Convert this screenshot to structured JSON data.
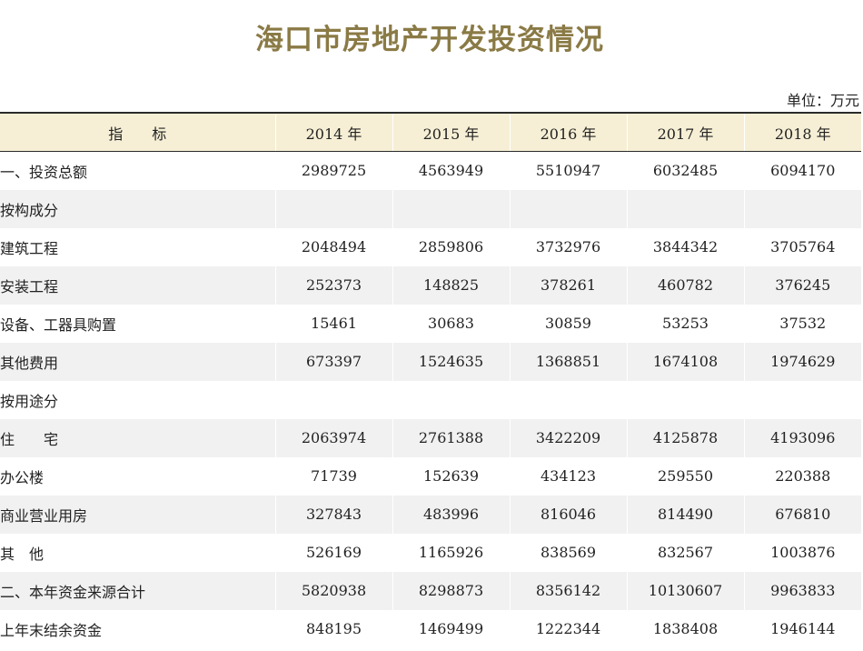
{
  "title": "海口市房地产开发投资情况",
  "unit": "单位：万元",
  "table": {
    "header": [
      "指　　标",
      "2014 年",
      "2015 年",
      "2016 年",
      "2017 年",
      "2018 年"
    ],
    "rows": [
      {
        "label": "一、投资总额",
        "values": [
          "2989725",
          "4563949",
          "5510947",
          "6032485",
          "6094170"
        ]
      },
      {
        "label": "按构成分",
        "values": [
          "",
          "",
          "",
          "",
          ""
        ]
      },
      {
        "label": "建筑工程",
        "values": [
          "2048494",
          "2859806",
          "3732976",
          "3844342",
          "3705764"
        ]
      },
      {
        "label": "安装工程",
        "values": [
          "252373",
          "148825",
          "378261",
          "460782",
          "376245"
        ]
      },
      {
        "label": "设备、工器具购置",
        "values": [
          "15461",
          "30683",
          "30859",
          "53253",
          "37532"
        ]
      },
      {
        "label": "其他费用",
        "values": [
          "673397",
          "1524635",
          "1368851",
          "1674108",
          "1974629"
        ]
      },
      {
        "label": "按用途分",
        "values": [
          "",
          "",
          "",
          "",
          ""
        ]
      },
      {
        "label": "住　　宅",
        "values": [
          "2063974",
          "2761388",
          "3422209",
          "4125878",
          "4193096"
        ]
      },
      {
        "label": "办公楼",
        "values": [
          "71739",
          "152639",
          "434123",
          "259550",
          "220388"
        ]
      },
      {
        "label": "商业营业用房",
        "values": [
          "327843",
          "483996",
          "816046",
          "814490",
          "676810"
        ]
      },
      {
        "label": "其　他",
        "values": [
          "526169",
          "1165926",
          "838569",
          "832567",
          "1003876"
        ]
      },
      {
        "label": "二、本年资金来源合计",
        "values": [
          "5820938",
          "8298873",
          "8356142",
          "10130607",
          "9963833"
        ]
      },
      {
        "label": "上年末结余资金",
        "values": [
          "848195",
          "1469499",
          "1222344",
          "1838408",
          "1946144"
        ]
      }
    ]
  }
}
